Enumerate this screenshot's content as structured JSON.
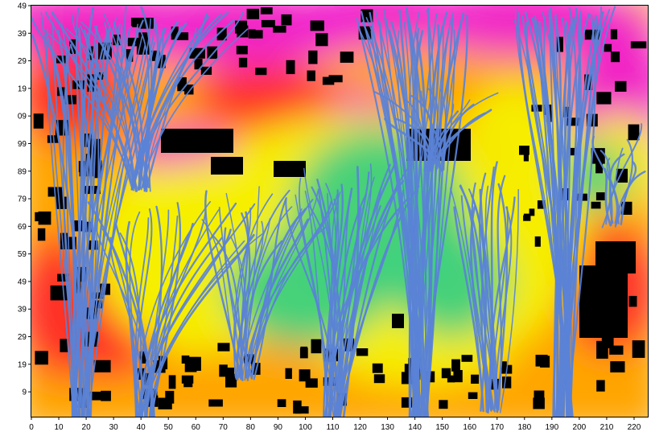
{
  "figure": {
    "kind": "wind streamline map over urban area",
    "colors": {
      "building": "#000000",
      "streamline": "#5a82d6",
      "low": "#f020d0",
      "mid_low": "#ff2a2a",
      "mid": "#ffa500",
      "mid_high": "#f5f000",
      "high": "#3cd080"
    }
  },
  "x_axis": {
    "range": [
      0,
      225
    ],
    "ticks": [
      "0",
      "10",
      "20",
      "30",
      "40",
      "50",
      "60",
      "70",
      "80",
      "90",
      "100",
      "110",
      "120",
      "130",
      "140",
      "150",
      "160",
      "170",
      "180",
      "190",
      "200",
      "210",
      "220"
    ],
    "tick_values": [
      0,
      10,
      20,
      30,
      40,
      50,
      60,
      70,
      80,
      90,
      100,
      110,
      120,
      130,
      140,
      150,
      160,
      170,
      180,
      190,
      200,
      210,
      220
    ]
  },
  "y_axis": {
    "ticks": [
      "49",
      "39",
      "29",
      "19",
      "09",
      "99",
      "89",
      "79",
      "69",
      "59",
      "49",
      "39",
      "29",
      "19",
      "9"
    ],
    "tick_positions": [
      0,
      10,
      20,
      30,
      40,
      50,
      60,
      70,
      80,
      90,
      100,
      110,
      120,
      130,
      140
    ],
    "range": [
      0,
      149
    ]
  }
}
